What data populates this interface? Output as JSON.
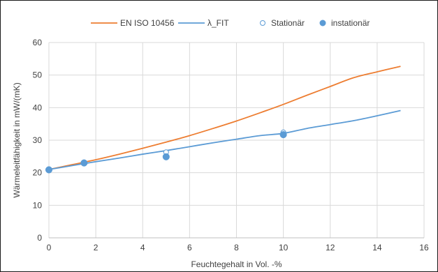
{
  "chart_data": {
    "type": "line",
    "xlabel": "Feuchtegehalt in Vol. -%",
    "ylabel": "Wärmeleitfähigkeit in mW/(mK)",
    "xlim": [
      0,
      16
    ],
    "ylim": [
      0,
      60
    ],
    "x_ticks": [
      "0",
      "2",
      "4",
      "6",
      "8",
      "10",
      "12",
      "14",
      "16"
    ],
    "y_ticks": [
      "0",
      "10",
      "20",
      "30",
      "40",
      "50",
      "60"
    ],
    "grid": true,
    "legend_position": "top",
    "series": [
      {
        "name": "EN ISO 10456",
        "kind": "line",
        "color": "#ED7D31",
        "x": [
          0,
          1,
          2,
          3,
          4,
          5,
          6,
          7,
          8,
          9,
          10,
          11,
          12,
          13,
          14,
          15
        ],
        "y": [
          21.0,
          22.5,
          24.0,
          25.7,
          27.5,
          29.4,
          31.4,
          33.6,
          35.9,
          38.4,
          41.0,
          43.8,
          46.5,
          49.2,
          51.0,
          52.7
        ]
      },
      {
        "name": "λ_FIT",
        "kind": "line",
        "color": "#5B9BD5",
        "x": [
          0,
          1,
          2,
          3,
          4,
          5,
          6,
          7,
          8,
          9,
          10,
          11,
          12,
          13,
          14,
          15
        ],
        "y": [
          21.0,
          22.2,
          23.4,
          24.5,
          25.7,
          26.8,
          28.0,
          29.2,
          30.3,
          31.4,
          32.1,
          33.6,
          34.8,
          36.0,
          37.5,
          39.1
        ]
      },
      {
        "name": "Stationär",
        "kind": "scatter-open",
        "color": "#5B9BD5",
        "x": [
          0,
          1.5,
          5,
          10
        ],
        "y": [
          21.0,
          23.2,
          26.3,
          32.4
        ]
      },
      {
        "name": "instationär",
        "kind": "scatter-filled",
        "color": "#5B9BD5",
        "x": [
          0,
          1.5,
          5,
          10
        ],
        "y": [
          20.9,
          23.0,
          24.9,
          31.7
        ]
      }
    ]
  }
}
